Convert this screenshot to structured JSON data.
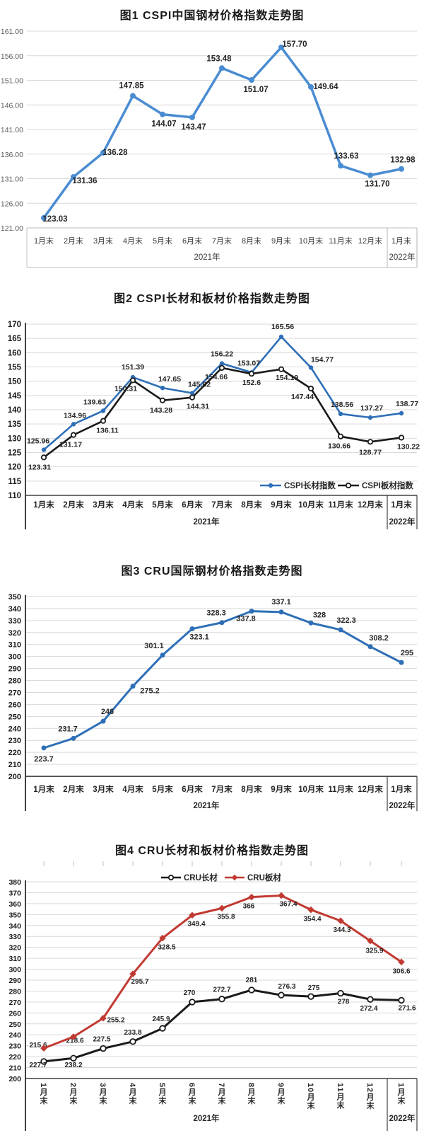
{
  "page": {
    "background": "#ffffff"
  },
  "months": [
    "1月末",
    "2月末",
    "3月末",
    "4月末",
    "5月末",
    "6月末",
    "7月末",
    "8月末",
    "9月末",
    "10月末",
    "11月末",
    "12月末",
    "1月末"
  ],
  "year_labels": {
    "y2021": "2021年",
    "y2022": "2022年"
  },
  "colors": {
    "blue_fig1": "#4a8cd2",
    "blue_fig23": "#2e6fb7",
    "black_series": "#1a1a1a",
    "red_series": "#c13a32",
    "grid": "#d9d9d9",
    "band_light": "#bfbfbf",
    "band_dark": "#404040",
    "y_label_fig1": "#595959",
    "label_text": "#262626"
  },
  "chart_data": [
    {
      "id": "fig1",
      "type": "line",
      "title": "图1  CSPI中国钢材价格指数走势图",
      "categories": [
        "1月末",
        "2月末",
        "3月末",
        "4月末",
        "5月末",
        "6月末",
        "7月末",
        "8月末",
        "9月末",
        "10月末",
        "11月末",
        "12月末",
        "1月末"
      ],
      "x_group_labels": [
        "2021年",
        "2022年"
      ],
      "ylim": [
        121,
        161
      ],
      "ytick_step": 5,
      "ytick_decimals": 2,
      "grid": true,
      "legend": null,
      "series": [
        {
          "name": "CSPI中国钢材价格指数",
          "color": "#4a8cd2",
          "marker": "circle-filled",
          "values": [
            123.03,
            131.36,
            136.28,
            147.85,
            144.07,
            143.47,
            153.48,
            151.07,
            157.7,
            149.64,
            133.63,
            131.7,
            132.98
          ],
          "labels": [
            "123.03",
            "131.36",
            "136.28",
            "147.85",
            "144.07",
            "143.47",
            "153.48",
            "151.07",
            "157.70",
            "149.64",
            "133.63",
            "131.70",
            "132.98"
          ]
        }
      ]
    },
    {
      "id": "fig2",
      "type": "line",
      "title": "图2  CSPI长材和板材价格指数走势图",
      "categories": [
        "1月末",
        "2月末",
        "3月末",
        "4月末",
        "5月末",
        "6月末",
        "7月末",
        "8月末",
        "9月末",
        "10月末",
        "11月末",
        "12月末",
        "1月末"
      ],
      "x_group_labels": [
        "2021年",
        "2022年"
      ],
      "ylim": [
        110,
        170
      ],
      "ytick_step": 5,
      "ytick_decimals": 0,
      "grid": true,
      "legend": {
        "position": "bottom-right-inside",
        "items": [
          "CSPI长材指数",
          "CSPI板材指数"
        ]
      },
      "series": [
        {
          "name": "CSPI长材指数",
          "color": "#2e6fb7",
          "marker": "circle-filled",
          "values": [
            125.96,
            134.96,
            139.63,
            151.39,
            147.65,
            145.82,
            156.22,
            153.07,
            165.56,
            154.77,
            138.56,
            137.27,
            138.77
          ],
          "labels": [
            "125.96",
            "134.96",
            "139.63",
            "151.39",
            "147.65",
            "145.82",
            "156.22",
            "153.07",
            "165.56",
            "154.77",
            "138.56",
            "137.27",
            "138.77"
          ]
        },
        {
          "name": "CSPI板材指数",
          "color": "#1a1a1a",
          "marker": "circle-open",
          "values": [
            123.31,
            131.17,
            136.11,
            150.31,
            143.28,
            144.31,
            154.66,
            152.6,
            154.19,
            147.44,
            130.66,
            128.77,
            130.22
          ],
          "labels": [
            "123.31",
            "131.17",
            "136.11",
            "150.31",
            "143.28",
            "144.31",
            "154.66",
            "152.6",
            "154.19",
            "147.44",
            "130.66",
            "128.77",
            "130.22"
          ]
        }
      ]
    },
    {
      "id": "fig3",
      "type": "line",
      "title": "图3  CRU国际钢材价格指数走势图",
      "categories": [
        "1月末",
        "2月末",
        "3月末",
        "4月末",
        "5月末",
        "6月末",
        "7月末",
        "8月末",
        "9月末",
        "10月末",
        "11月末",
        "12月末",
        "1月末"
      ],
      "x_group_labels": [
        "2021年",
        "2022年"
      ],
      "ylim": [
        200,
        350
      ],
      "ytick_step": 10,
      "ytick_decimals": 0,
      "grid": true,
      "legend": null,
      "series": [
        {
          "name": "CRU国际钢材价格指数",
          "color": "#2e6fb7",
          "marker": "circle-filled",
          "values": [
            223.7,
            231.7,
            246,
            275.2,
            301.1,
            323.1,
            328.3,
            337.8,
            337.1,
            328,
            322.3,
            308.2,
            295
          ],
          "labels": [
            "223.7",
            "231.7",
            "246",
            "275.2",
            "301.1",
            "323.1",
            "328.3",
            "337.8",
            "337.1",
            "328",
            "322.3",
            "308.2",
            "295"
          ]
        }
      ]
    },
    {
      "id": "fig4",
      "type": "line",
      "title": "图4  CRU长材和板材价格指数走势图",
      "categories": [
        "1月末",
        "2月末",
        "3月末",
        "4月末",
        "5月末",
        "6月末",
        "7月末",
        "8月末",
        "9月末",
        "10月末",
        "11月末",
        "12月末",
        "1月末"
      ],
      "x_group_labels": [
        "2021年",
        "2022年"
      ],
      "ylim": [
        200,
        380
      ],
      "ytick_step": 10,
      "ytick_decimals": 0,
      "grid": true,
      "legend": {
        "position": "top-center",
        "items": [
          "CRU长材",
          "CRU板材"
        ]
      },
      "series": [
        {
          "name": "CRU长材",
          "color": "#1a1a1a",
          "marker": "circle-open",
          "values": [
            215.6,
            218.6,
            227.5,
            233.8,
            245.9,
            270,
            272.7,
            281,
            276.3,
            275,
            278,
            272.4,
            271.6
          ],
          "labels": [
            "215.6",
            "218.6",
            "227.5",
            "233.8",
            "245.9",
            "270",
            "272.7",
            "281",
            "276.3",
            "275",
            "278",
            "272.4",
            "271.6"
          ]
        },
        {
          "name": "CRU板材",
          "color": "#c13a32",
          "marker": "diamond-filled",
          "values": [
            227.7,
            238.2,
            255.2,
            295.7,
            328.5,
            349.4,
            355.8,
            366,
            367.4,
            354.4,
            344.3,
            325.9,
            306.6
          ],
          "labels": [
            "227.7",
            "238.2",
            "255.2",
            "295.7",
            "328.5",
            "349.4",
            "355.8",
            "366",
            "367.4",
            "354.4",
            "344.3",
            "325.9",
            "306.6"
          ]
        }
      ]
    }
  ]
}
